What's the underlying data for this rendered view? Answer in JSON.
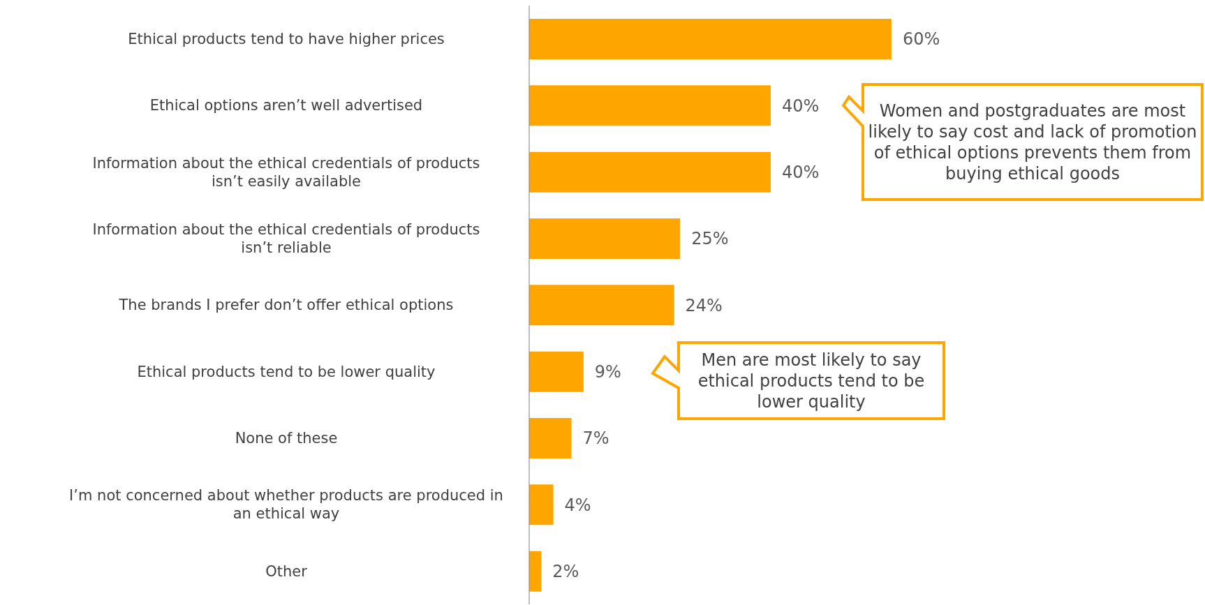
{
  "chart_data": {
    "type": "bar",
    "orientation": "horizontal",
    "categories": [
      "Ethical products tend to have higher prices",
      "Ethical options aren’t well advertised",
      "Information about the ethical credentials of products isn’t easily available",
      "Information about the ethical credentials of products isn’t reliable",
      "The brands I prefer don’t offer ethical options",
      "Ethical products tend to be lower quality",
      "None of these",
      "I’m not concerned about whether products are produced in an ethical way",
      "Other"
    ],
    "values": [
      60,
      40,
      40,
      25,
      24,
      9,
      7,
      4,
      2
    ],
    "value_labels": [
      "60%",
      "40%",
      "40%",
      "25%",
      "24%",
      "9%",
      "7%",
      "4%",
      "2%"
    ],
    "color": "#ffa500",
    "annotations": [
      "Women and postgraduates are most likely to say cost and lack of promotion of ethical options prevents them from buying ethical goods",
      "Men are most likely to say ethical products tend to be lower quality"
    ],
    "grid": false,
    "legend": false
  }
}
